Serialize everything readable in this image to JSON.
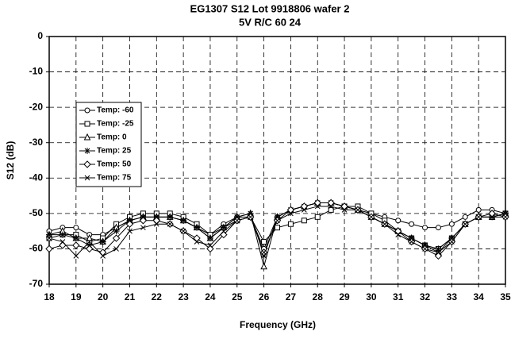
{
  "chart_data": {
    "type": "line",
    "title": "EG1307 S12 Lot 9918806 wafer 2",
    "subtitle": "5V R/C 60 24",
    "x_label": "Frequency (GHz)",
    "y_label": "S12 (dB)",
    "x": [
      18,
      18.5,
      19,
      19.5,
      20,
      20.5,
      21,
      21.5,
      22,
      22.5,
      23,
      23.5,
      24,
      24.5,
      25,
      25.5,
      26,
      26.5,
      27,
      27.5,
      28,
      28.5,
      29,
      29.5,
      30,
      30.5,
      31,
      31.5,
      32,
      32.5,
      33,
      33.5,
      34,
      34.5,
      35
    ],
    "xlim": [
      18,
      35
    ],
    "xticks": [
      18,
      19,
      20,
      21,
      22,
      23,
      24,
      25,
      26,
      27,
      28,
      29,
      30,
      31,
      32,
      33,
      34,
      35
    ],
    "ylim": [
      -70,
      0
    ],
    "yticks": [
      0,
      -10,
      -20,
      -30,
      -40,
      -50,
      -60,
      -70
    ],
    "grid": true,
    "legend": "center left",
    "series": [
      {
        "name": "Temp: -60",
        "color": "#000000",
        "marker": "circle",
        "values": [
          -55,
          -54,
          -54,
          -56,
          -56,
          -54,
          -52,
          -51,
          -51,
          -51,
          -52,
          -54,
          -56,
          -53,
          -51,
          -51,
          -60,
          -51,
          -49,
          -48,
          -47,
          -47,
          -48,
          -49,
          -50,
          -51,
          -52,
          -53,
          -54,
          -54,
          -53,
          -51,
          -49,
          -49,
          -50
        ]
      },
      {
        "name": "Temp: -25",
        "color": "#000000",
        "marker": "square",
        "values": [
          -57,
          -56,
          -56,
          -58,
          -57,
          -53,
          -51,
          -50,
          -50,
          -50,
          -51,
          -53,
          -56,
          -54,
          -52,
          -51,
          -58,
          -54,
          -53,
          -52,
          -51,
          -49,
          -48,
          -48,
          -50,
          -52,
          -55,
          -57,
          -59,
          -60,
          -57,
          -53,
          -51,
          -51,
          -50
        ]
      },
      {
        "name": "Temp: 0",
        "color": "#000000",
        "marker": "triangle",
        "values": [
          -56,
          -55,
          -57,
          -57,
          -58,
          -54,
          -52,
          -51,
          -51,
          -51,
          -52,
          -54,
          -57,
          -54,
          -51,
          -50,
          -65,
          -51,
          -49,
          -48,
          -47,
          -47,
          -48,
          -49,
          -51,
          -53,
          -55,
          -57,
          -59,
          -61,
          -57,
          -53,
          -51,
          -51,
          -50
        ]
      },
      {
        "name": "Temp: 25",
        "color": "#000000",
        "marker": "star",
        "values": [
          -56,
          -56,
          -57,
          -59,
          -58,
          -55,
          -52,
          -51,
          -51,
          -51,
          -52,
          -54,
          -57,
          -54,
          -51,
          -50,
          -62,
          -51,
          -49,
          -48,
          -47,
          -47,
          -48,
          -49,
          -51,
          -53,
          -55,
          -57,
          -59,
          -60,
          -57,
          -53,
          -51,
          -51,
          -50
        ]
      },
      {
        "name": "Temp: 50",
        "color": "#000000",
        "marker": "diamond",
        "values": [
          -60,
          -59,
          -59,
          -60,
          -61,
          -57,
          -53,
          -52,
          -52,
          -53,
          -55,
          -57,
          -60,
          -56,
          -52,
          -51,
          -61,
          -52,
          -49,
          -48,
          -47,
          -47,
          -48,
          -49,
          -51,
          -53,
          -55,
          -58,
          -60,
          -62,
          -58,
          -53,
          -51,
          -50,
          -51
        ]
      },
      {
        "name": "Temp: 75",
        "color": "#000000",
        "marker": "x",
        "values": [
          -57,
          -58,
          -62,
          -58,
          -62,
          -60,
          -55,
          -54,
          -53,
          -53,
          -55,
          -58,
          -59,
          -55,
          -52,
          -51,
          -61,
          -52,
          -50,
          -49,
          -48,
          -48,
          -49,
          -49,
          -51,
          -53,
          -56,
          -58,
          -60,
          -61,
          -58,
          -53,
          -51,
          -51,
          -51
        ]
      }
    ]
  }
}
